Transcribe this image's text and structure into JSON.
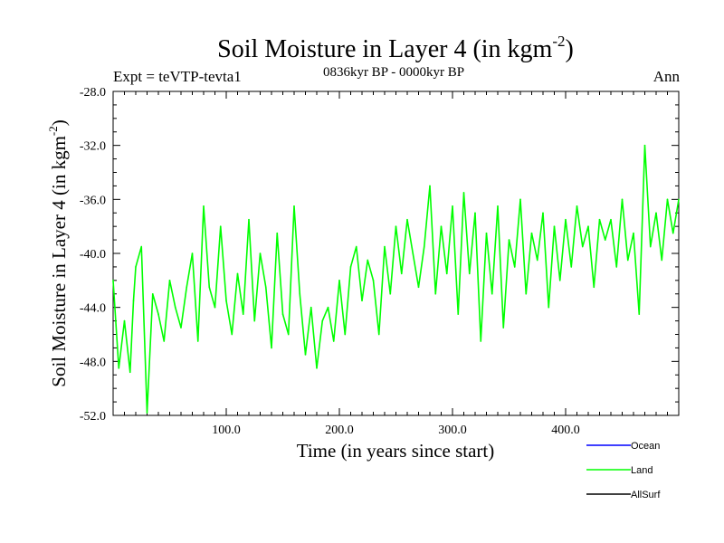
{
  "chart_data": {
    "type": "line",
    "title": "Soil Moisture in Layer 4 (in kgm",
    "title_sup": "-2",
    "title_close": ")",
    "subtitle": "0836kyr BP - 0000kyr BP",
    "left_label": "Expt = teVTP-tevta1",
    "right_label": "Ann",
    "xlabel": "Time (in years since start)",
    "ylabel": "Soil Moisture in Layer 4 (in kgm",
    "ylabel_sup": "-2",
    "ylabel_close": ")",
    "xlim": [
      0,
      500
    ],
    "ylim": [
      -52,
      -28
    ],
    "xticks": [
      100,
      200,
      300,
      400
    ],
    "xtick_labels": [
      "100.0",
      "200.0",
      "300.0",
      "400.0"
    ],
    "yticks": [
      -28,
      -32,
      -36,
      -40,
      -44,
      -48,
      -52
    ],
    "ytick_labels": [
      "-28.0",
      "-32.0",
      "-36.0",
      "-40.0",
      "-44.0",
      "-48.0",
      "-52.0"
    ],
    "legend": [
      {
        "name": "Ocean",
        "color": "#0000ff"
      },
      {
        "name": "Land",
        "color": "#00ff00"
      },
      {
        "name": "AllSurf",
        "color": "#000000"
      }
    ],
    "series": [
      {
        "name": "Land",
        "color": "#00ff00",
        "x": [
          0,
          5,
          10,
          15,
          18,
          20,
          25,
          30,
          35,
          40,
          45,
          50,
          55,
          60,
          65,
          70,
          75,
          80,
          85,
          90,
          95,
          100,
          105,
          110,
          115,
          120,
          125,
          130,
          135,
          140,
          145,
          150,
          155,
          160,
          165,
          170,
          175,
          180,
          185,
          190,
          195,
          200,
          205,
          210,
          215,
          220,
          225,
          230,
          235,
          240,
          245,
          250,
          255,
          260,
          265,
          270,
          275,
          280,
          285,
          290,
          295,
          300,
          305,
          310,
          315,
          320,
          325,
          330,
          335,
          340,
          345,
          350,
          355,
          360,
          365,
          370,
          375,
          380,
          385,
          390,
          395,
          400,
          405,
          410,
          415,
          420,
          425,
          430,
          435,
          440,
          445,
          450,
          455,
          460,
          465,
          470,
          475,
          480,
          485,
          490,
          495,
          500
        ],
        "values": [
          -42.0,
          -48.5,
          -45.0,
          -48.8,
          -43.5,
          -41.0,
          -39.5,
          -51.8,
          -43.0,
          -44.5,
          -46.5,
          -42.0,
          -44.0,
          -45.5,
          -42.5,
          -40.0,
          -46.5,
          -36.5,
          -42.5,
          -44.0,
          -38.0,
          -43.5,
          -46.0,
          -41.5,
          -44.5,
          -37.5,
          -45.0,
          -40.0,
          -42.5,
          -47.0,
          -38.5,
          -44.5,
          -46.0,
          -36.5,
          -43.0,
          -47.5,
          -44.0,
          -48.5,
          -45.0,
          -44.0,
          -46.5,
          -42.0,
          -46.0,
          -41.0,
          -39.5,
          -43.5,
          -40.5,
          -42.0,
          -46.0,
          -39.5,
          -43.0,
          -38.0,
          -41.5,
          -37.5,
          -40.0,
          -42.5,
          -39.5,
          -35.0,
          -43.0,
          -38.0,
          -41.5,
          -36.5,
          -44.5,
          -35.5,
          -41.5,
          -37.0,
          -46.5,
          -38.5,
          -43.0,
          -36.5,
          -45.5,
          -39.0,
          -41.0,
          -36.0,
          -43.0,
          -38.5,
          -40.5,
          -37.0,
          -44.0,
          -38.0,
          -42.0,
          -37.5,
          -41.0,
          -36.5,
          -39.5,
          -38.0,
          -42.5,
          -37.5,
          -39.0,
          -37.5,
          -41.0,
          -36.0,
          -40.5,
          -38.5,
          -44.5,
          -32.0,
          -39.5,
          -37.0,
          -40.5,
          -36.0,
          -38.5,
          -36.0
        ]
      }
    ]
  }
}
